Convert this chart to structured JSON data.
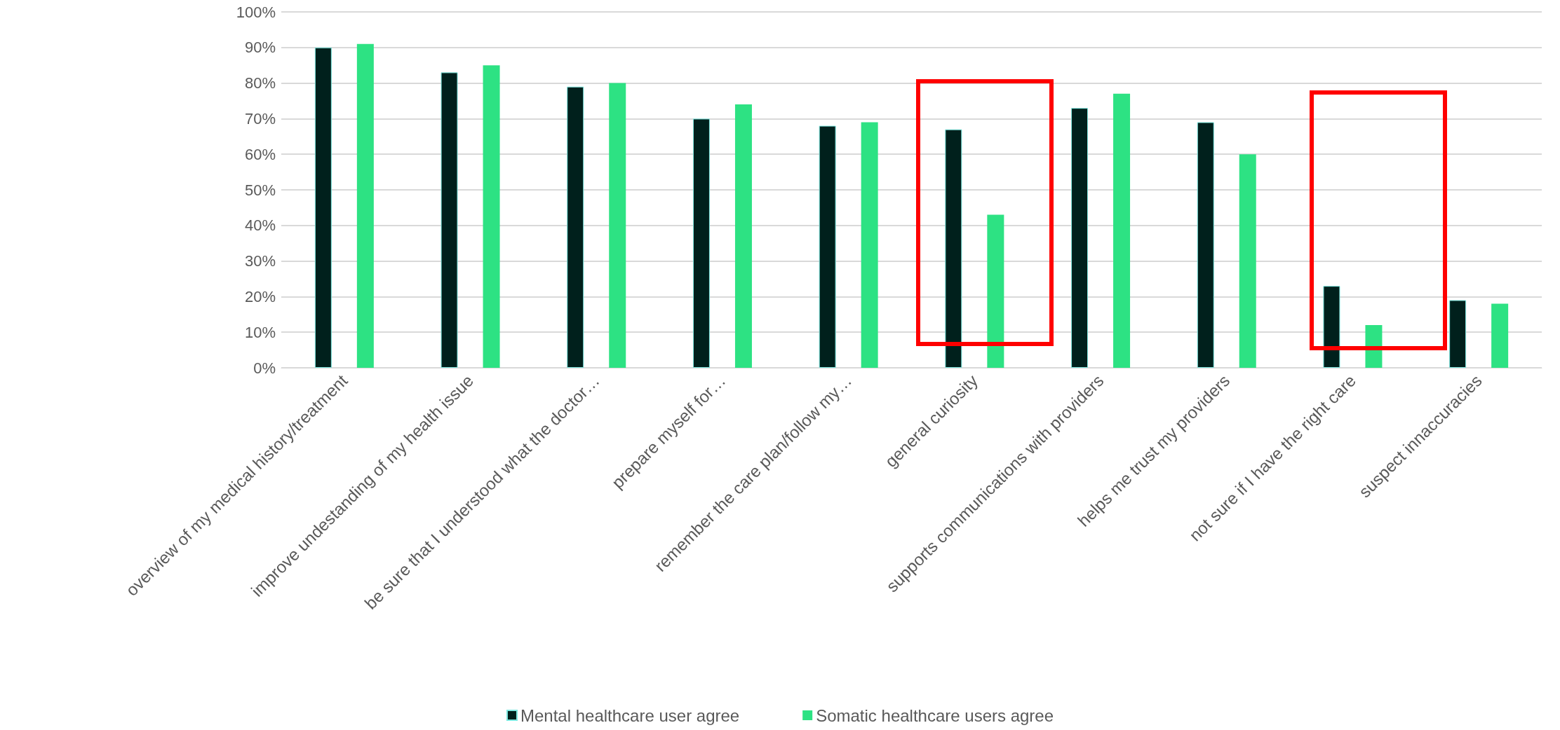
{
  "chart_data": {
    "type": "bar",
    "categories": [
      "overview of my medical history/treatment",
      "improve undestanding of my health issue",
      "be sure that I understood what the doctor…",
      "prepare myself for…",
      "remember the care plan/follow my…",
      "general curiosity",
      "supports communications with providers",
      "helps me trust my providers",
      "not sure if I have the right care",
      "suspect innaccuracies"
    ],
    "series": [
      {
        "name": "Mental healthcare user agree",
        "color": "#00201c",
        "values": [
          90,
          83,
          79,
          70,
          68,
          67,
          73,
          69,
          23,
          19
        ]
      },
      {
        "name": "Somatic healthcare users agree",
        "color": "#2de283",
        "values": [
          91,
          85,
          80,
          74,
          69,
          43,
          77,
          60,
          12,
          18
        ]
      }
    ],
    "ylim": [
      0,
      100
    ],
    "yticks": [
      {
        "value": 0,
        "label": "0%"
      },
      {
        "value": 10,
        "label": "10%"
      },
      {
        "value": 20,
        "label": "20%"
      },
      {
        "value": 30,
        "label": "30%"
      },
      {
        "value": 40,
        "label": "40%"
      },
      {
        "value": 50,
        "label": "50%"
      },
      {
        "value": 60,
        "label": "60%"
      },
      {
        "value": 70,
        "label": "70%"
      },
      {
        "value": 80,
        "label": "80%"
      },
      {
        "value": 90,
        "label": "90%"
      },
      {
        "value": 100,
        "label": "100%"
      }
    ],
    "grid": "y",
    "legend": "bottom"
  }
}
